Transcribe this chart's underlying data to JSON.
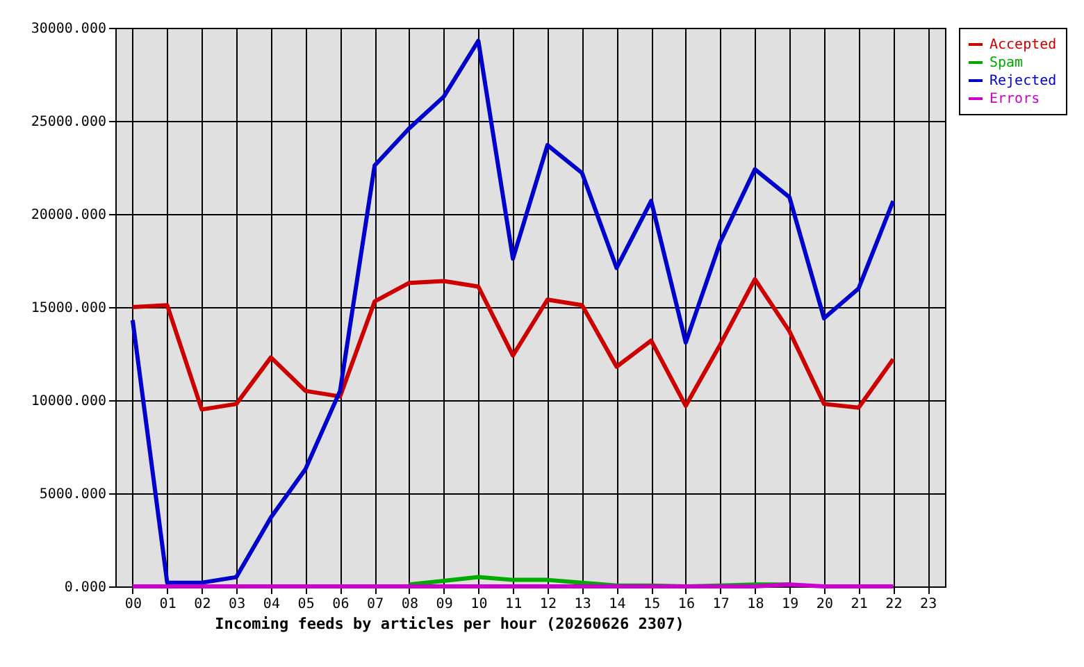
{
  "chart_data": {
    "type": "line",
    "xlabel": "Incoming feeds by articles per hour (20260626 2307)",
    "categories": [
      "00",
      "01",
      "02",
      "03",
      "04",
      "05",
      "06",
      "07",
      "08",
      "09",
      "10",
      "11",
      "12",
      "13",
      "14",
      "15",
      "16",
      "17",
      "18",
      "19",
      "20",
      "21",
      "22",
      "23"
    ],
    "series": [
      {
        "name": "Accepted",
        "color": "#cc0000",
        "values": [
          15000,
          15100,
          9500,
          9800,
          12300,
          10500,
          10200,
          15300,
          16300,
          16400,
          16100,
          12400,
          15400,
          15100,
          11800,
          13200,
          9700,
          13000,
          16500,
          13700,
          9800,
          9600,
          12200,
          null
        ]
      },
      {
        "name": "Spam",
        "color": "#00aa00",
        "values": [
          null,
          null,
          null,
          null,
          null,
          null,
          null,
          null,
          100,
          300,
          500,
          350,
          350,
          200,
          50,
          50,
          0,
          50,
          100,
          100,
          null,
          null,
          null,
          null
        ]
      },
      {
        "name": "Rejected",
        "color": "#0000cc",
        "values": [
          14300,
          200,
          200,
          500,
          3700,
          6300,
          10500,
          22600,
          24600,
          26300,
          29300,
          17600,
          23700,
          22200,
          17100,
          20700,
          13100,
          18500,
          22400,
          20900,
          14400,
          16000,
          20700,
          null
        ]
      },
      {
        "name": "Errors",
        "color": "#cc00cc",
        "values": [
          0,
          0,
          0,
          0,
          0,
          0,
          0,
          0,
          0,
          0,
          0,
          0,
          0,
          0,
          0,
          0,
          0,
          0,
          0,
          100,
          0,
          0,
          0,
          null
        ]
      }
    ],
    "ylim": [
      0,
      30000
    ],
    "yticks": [
      {
        "value": 0,
        "label": "0.000"
      },
      {
        "value": 5000,
        "label": "5000.000"
      },
      {
        "value": 10000,
        "label": "10000.000"
      },
      {
        "value": 15000,
        "label": "15000.000"
      },
      {
        "value": 20000,
        "label": "20000.000"
      },
      {
        "value": 25000,
        "label": "25000.000"
      },
      {
        "value": 30000,
        "label": "30000.000"
      }
    ],
    "grid": true,
    "legend": "top right",
    "line_style": "solid"
  }
}
